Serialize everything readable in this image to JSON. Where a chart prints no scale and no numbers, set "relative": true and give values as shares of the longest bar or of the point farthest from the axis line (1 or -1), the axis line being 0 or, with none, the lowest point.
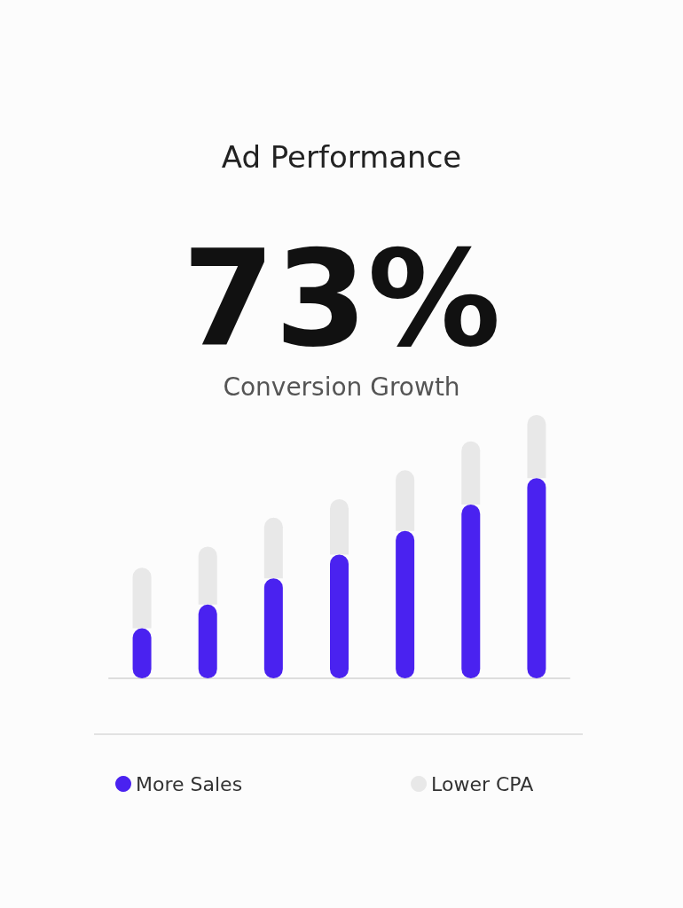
{
  "chart_data": {
    "type": "bar",
    "title": "Ad Performance",
    "annotations": [
      "73%",
      "Conversion Growth"
    ],
    "relative": true,
    "stacked": true,
    "categories": [
      null,
      null,
      null,
      null,
      null,
      null,
      null
    ],
    "series": [
      {
        "name": "More Sales",
        "color": "#4a22f0",
        "values": [
          0.19,
          0.28,
          0.38,
          0.47,
          0.56,
          0.66,
          0.76
        ]
      },
      {
        "name": "Lower CPA",
        "color": "#e8e8e8",
        "values": [
          0.23,
          0.22,
          0.23,
          0.21,
          0.23,
          0.24,
          0.24
        ]
      }
    ],
    "legend": "bottom"
  }
}
